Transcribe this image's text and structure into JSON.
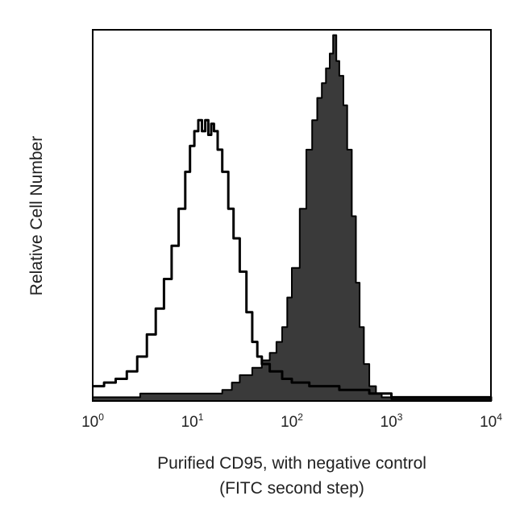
{
  "chart_data": {
    "type": "area",
    "scale": "log",
    "xlim": [
      1,
      10000
    ],
    "x_ticks": [
      {
        "base": "10",
        "exp": "0"
      },
      {
        "base": "10",
        "exp": "1"
      },
      {
        "base": "10",
        "exp": "2"
      },
      {
        "base": "10",
        "exp": "3"
      },
      {
        "base": "10",
        "exp": "4"
      }
    ],
    "xlabel_line1": "Purified CD95, with negative control",
    "xlabel_line2": "(FITC second step)",
    "ylabel": "Relative Cell Number",
    "ylim": [
      0,
      100
    ],
    "grid": false,
    "series": [
      {
        "style": "outline",
        "color": "#000000",
        "points": [
          [
            1.0,
            4
          ],
          [
            1.3,
            5
          ],
          [
            1.7,
            6
          ],
          [
            2.2,
            8
          ],
          [
            2.8,
            12
          ],
          [
            3.5,
            18
          ],
          [
            4.3,
            25
          ],
          [
            5.2,
            33
          ],
          [
            6.2,
            42
          ],
          [
            7.3,
            52
          ],
          [
            8.5,
            62
          ],
          [
            9.5,
            69
          ],
          [
            10.5,
            73
          ],
          [
            11.5,
            76
          ],
          [
            12.5,
            73
          ],
          [
            13.5,
            76
          ],
          [
            14.5,
            72
          ],
          [
            15.5,
            75
          ],
          [
            16.5,
            73
          ],
          [
            18,
            68
          ],
          [
            20,
            62
          ],
          [
            23,
            52
          ],
          [
            26,
            44
          ],
          [
            30,
            35
          ],
          [
            35,
            24
          ],
          [
            40,
            16
          ],
          [
            45,
            12
          ],
          [
            50,
            10
          ],
          [
            60,
            8
          ],
          [
            80,
            6
          ],
          [
            100,
            5
          ],
          [
            150,
            4
          ],
          [
            300,
            3
          ],
          [
            600,
            2
          ],
          [
            1000,
            1
          ],
          [
            10000,
            0
          ]
        ]
      },
      {
        "style": "filled",
        "color": "#3a3a3a",
        "points": [
          [
            1.0,
            1
          ],
          [
            3,
            2
          ],
          [
            10,
            2
          ],
          [
            20,
            3
          ],
          [
            25,
            5
          ],
          [
            30,
            7
          ],
          [
            40,
            9
          ],
          [
            50,
            11
          ],
          [
            60,
            13
          ],
          [
            70,
            16
          ],
          [
            80,
            20
          ],
          [
            90,
            28
          ],
          [
            100,
            36
          ],
          [
            120,
            52
          ],
          [
            140,
            68
          ],
          [
            160,
            76
          ],
          [
            180,
            82
          ],
          [
            200,
            86
          ],
          [
            220,
            90
          ],
          [
            240,
            94
          ],
          [
            260,
            99
          ],
          [
            280,
            92
          ],
          [
            300,
            88
          ],
          [
            330,
            80
          ],
          [
            360,
            68
          ],
          [
            400,
            50
          ],
          [
            440,
            32
          ],
          [
            480,
            20
          ],
          [
            530,
            10
          ],
          [
            600,
            4
          ],
          [
            700,
            2
          ],
          [
            800,
            1
          ],
          [
            1000,
            0.5
          ],
          [
            10000,
            0
          ]
        ]
      }
    ]
  }
}
